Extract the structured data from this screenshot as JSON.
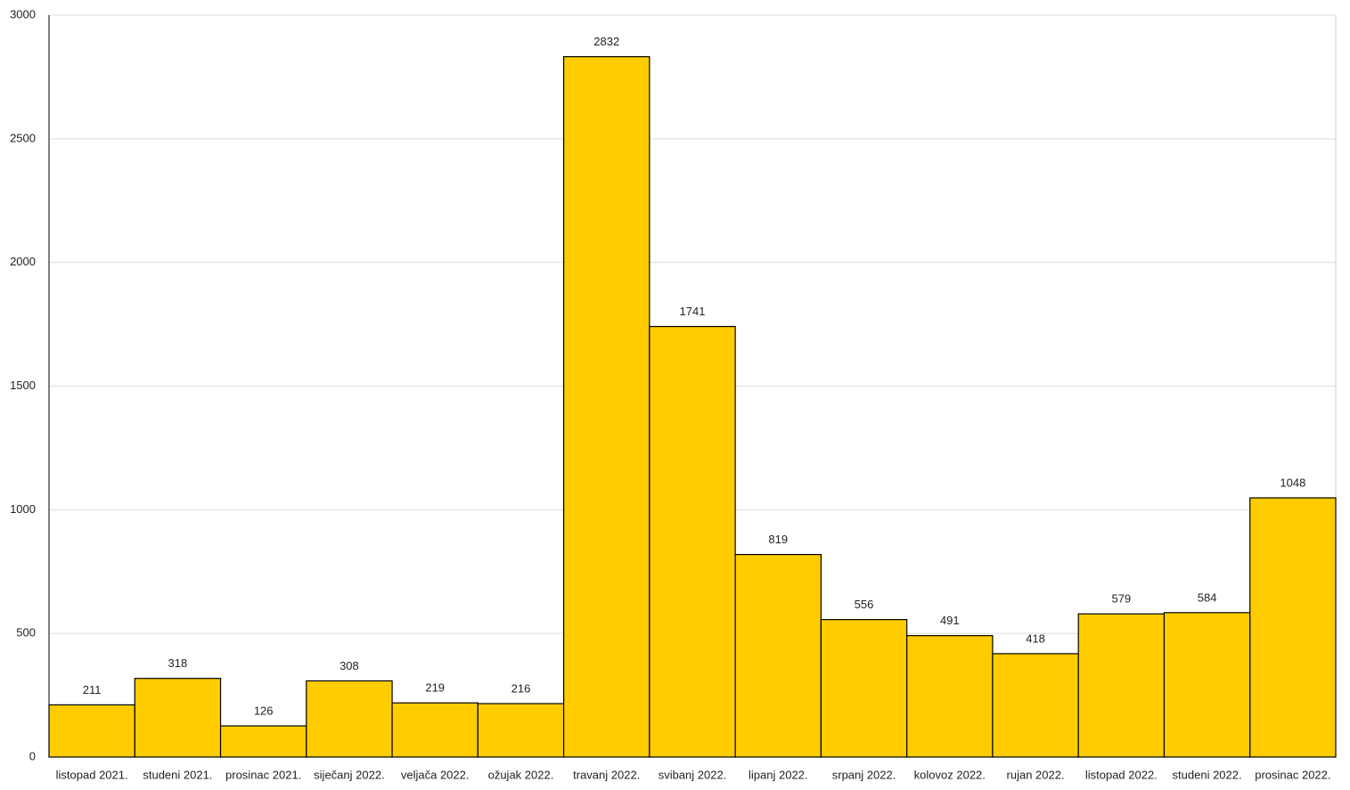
{
  "chart_data": {
    "type": "bar",
    "categories": [
      "listopad 2021.",
      "studeni 2021.",
      "prosinac 2021.",
      "siječanj 2022.",
      "veljača 2022.",
      "ožujak 2022.",
      "travanj 2022.",
      "svibanj 2022.",
      "lipanj 2022.",
      "srpanj 2022.",
      "kolovoz 2022.",
      "rujan 2022.",
      "listopad 2022.",
      "studeni 2022.",
      "prosinac 2022."
    ],
    "values": [
      211,
      318,
      126,
      308,
      219,
      216,
      2832,
      1741,
      819,
      556,
      491,
      418,
      579,
      584,
      1048
    ],
    "color": "#ffcc00",
    "ylim": [
      0,
      3000
    ],
    "yticks": [
      0,
      500,
      1000,
      1500,
      2000,
      2500,
      3000
    ],
    "grid": true
  }
}
